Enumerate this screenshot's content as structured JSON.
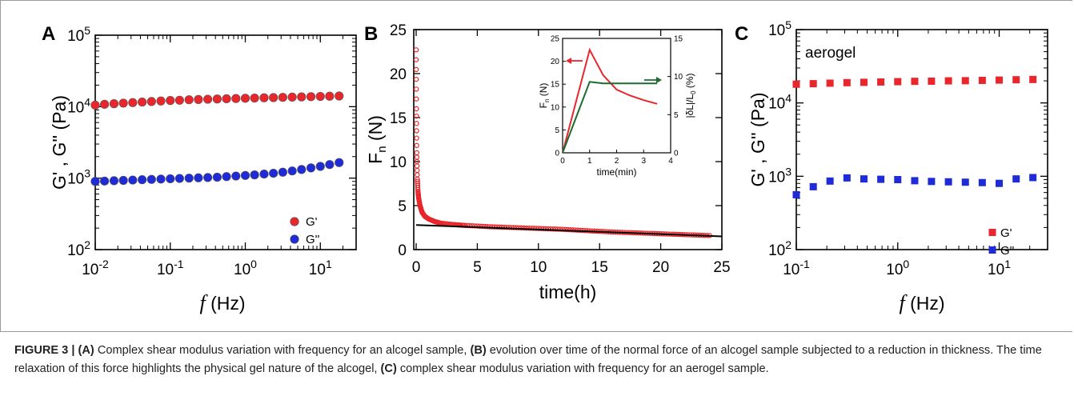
{
  "colors": {
    "red": "#e8262b",
    "blue": "#1f2bd6",
    "green": "#1a6b2d",
    "black": "#000000"
  },
  "chart_data": [
    {
      "panel": "A",
      "type": "scatter",
      "xscale": "log",
      "yscale": "log",
      "xlim": [
        0.01,
        30
      ],
      "ylim": [
        100,
        100000
      ],
      "xlabel_italic": "f",
      "xlabel": "(Hz)",
      "ylabel": "G' , G'' (Pa)",
      "xticks": [
        "10-2",
        "10-1",
        "100",
        "101"
      ],
      "yticks": [
        "102",
        "103",
        "104",
        "105"
      ],
      "marker": "circle",
      "legend_position": "bottom-right",
      "series": [
        {
          "name": "G'",
          "color": "#e8262b",
          "x": [
            0.01,
            0.0133,
            0.0178,
            0.0237,
            0.0316,
            0.0422,
            0.0562,
            0.075,
            0.1,
            0.133,
            0.178,
            0.237,
            0.316,
            0.422,
            0.562,
            0.75,
            1,
            1.33,
            1.78,
            2.37,
            3.16,
            4.22,
            5.62,
            7.5,
            10,
            13.3,
            17.8
          ],
          "y": [
            10500,
            10800,
            11000,
            11200,
            11400,
            11600,
            11800,
            12000,
            12200,
            12300,
            12500,
            12600,
            12700,
            12800,
            12900,
            13000,
            13100,
            13200,
            13300,
            13400,
            13500,
            13600,
            13700,
            13800,
            13900,
            14000,
            14100
          ]
        },
        {
          "name": "G''",
          "color": "#1f2bd6",
          "x": [
            0.01,
            0.0133,
            0.0178,
            0.0237,
            0.0316,
            0.0422,
            0.0562,
            0.075,
            0.1,
            0.133,
            0.178,
            0.237,
            0.316,
            0.422,
            0.562,
            0.75,
            1,
            1.33,
            1.78,
            2.37,
            3.16,
            4.22,
            5.62,
            7.5,
            10,
            13.3,
            17.8
          ],
          "y": [
            900,
            910,
            920,
            930,
            940,
            950,
            960,
            970,
            980,
            990,
            1000,
            1010,
            1020,
            1030,
            1050,
            1070,
            1090,
            1110,
            1140,
            1170,
            1210,
            1260,
            1320,
            1390,
            1460,
            1550,
            1650
          ]
        }
      ]
    },
    {
      "panel": "B",
      "type": "scatter",
      "xlim": [
        0,
        25
      ],
      "ylim": [
        0,
        25
      ],
      "xlabel": "time(h)",
      "ylabel": "Fn (N)",
      "xticks": [
        "0",
        "5",
        "10",
        "15",
        "20",
        "25"
      ],
      "yticks": [
        "0",
        "5",
        "10",
        "15",
        "20",
        "25"
      ],
      "series": [
        {
          "color": "#e8262b",
          "x": [
            0,
            0.02,
            0.05,
            0.1,
            0.15,
            0.2,
            0.3,
            0.4,
            0.5,
            0.7,
            1,
            1.5,
            2,
            3,
            4,
            6,
            8,
            10,
            12,
            14,
            16,
            18,
            20,
            22,
            24
          ],
          "y": [
            22.7,
            16,
            11,
            8,
            6.6,
            5.9,
            5.1,
            4.6,
            4.2,
            3.8,
            3.5,
            3.2,
            3.0,
            2.85,
            2.75,
            2.6,
            2.5,
            2.4,
            2.3,
            2.15,
            2.0,
            1.9,
            1.8,
            1.7,
            1.6
          ]
        },
        {
          "type": "line",
          "color": "#000000",
          "x": [
            0,
            25
          ],
          "y": [
            2.8,
            1.5
          ]
        }
      ],
      "inset": {
        "type": "line",
        "xlim": [
          0,
          4
        ],
        "ylim_left": [
          0,
          25
        ],
        "ylim_right": [
          0,
          15
        ],
        "xlabel": "time(min)",
        "ylabel_left": "Fn (N)",
        "ylabel_right": "|δL|/L0 (%)",
        "xticks": [
          "0",
          "1",
          "2",
          "3",
          "4"
        ],
        "yticks_left": [
          "0",
          "5",
          "10",
          "15",
          "20",
          "25"
        ],
        "yticks_right": [
          "0",
          "5",
          "10",
          "15"
        ],
        "series": [
          {
            "axis": "left",
            "color": "#e8262b",
            "x": [
              0,
              1,
              1.5,
              2,
              2.5,
              3,
              3.5
            ],
            "y": [
              0,
              22.5,
              17,
              13.8,
              12.5,
              11.5,
              10.7
            ]
          },
          {
            "axis": "right",
            "color": "#1a6b2d",
            "x": [
              0,
              1,
              1.5,
              2,
              2.5,
              3,
              3.5
            ],
            "y": [
              0,
              9.3,
              9.1,
              9.1,
              9.1,
              9.1,
              9.1
            ]
          }
        ]
      }
    },
    {
      "panel": "C",
      "type": "scatter",
      "xscale": "log",
      "yscale": "log",
      "xlim": [
        0.1,
        30
      ],
      "ylim": [
        100,
        100000
      ],
      "xlabel_italic": "f",
      "xlabel": "(Hz)",
      "ylabel": "G' , G'' (Pa)",
      "annotation": "aerogel",
      "xticks": [
        "10-1",
        "100",
        "101"
      ],
      "yticks": [
        "102",
        "103",
        "104",
        "105"
      ],
      "marker": "square",
      "legend_position": "bottom-right",
      "series": [
        {
          "name": "G'",
          "color": "#e8262b",
          "x": [
            0.1,
            0.147,
            0.215,
            0.316,
            0.464,
            0.681,
            1,
            1.47,
            2.15,
            3.16,
            4.64,
            6.81,
            10,
            14.7,
            21.5
          ],
          "y": [
            18000,
            18300,
            18600,
            18900,
            19100,
            19300,
            19500,
            19700,
            19800,
            20000,
            20100,
            20300,
            20500,
            20700,
            20900
          ]
        },
        {
          "name": "G''",
          "color": "#1f2bd6",
          "x": [
            0.1,
            0.147,
            0.215,
            0.316,
            0.464,
            0.681,
            1,
            1.47,
            2.15,
            3.16,
            4.64,
            6.81,
            10,
            14.7,
            21.5
          ],
          "y": [
            560,
            720,
            860,
            950,
            920,
            910,
            900,
            870,
            850,
            840,
            830,
            820,
            800,
            920,
            960
          ]
        }
      ]
    }
  ],
  "caption": {
    "label": "FIGURE 3 |",
    "a_tag": "(A)",
    "a_text": " Complex shear modulus variation with frequency for an alcogel sample, ",
    "b_tag": "(B)",
    "b_text": " evolution over time of the normal force of an alcogel sample subjected to a reduction in thickness. The time relaxation of this force highlights the physical gel nature of the alcogel, ",
    "c_tag": "(C)",
    "c_text": " complex shear modulus variation with frequency for an aerogel sample."
  }
}
